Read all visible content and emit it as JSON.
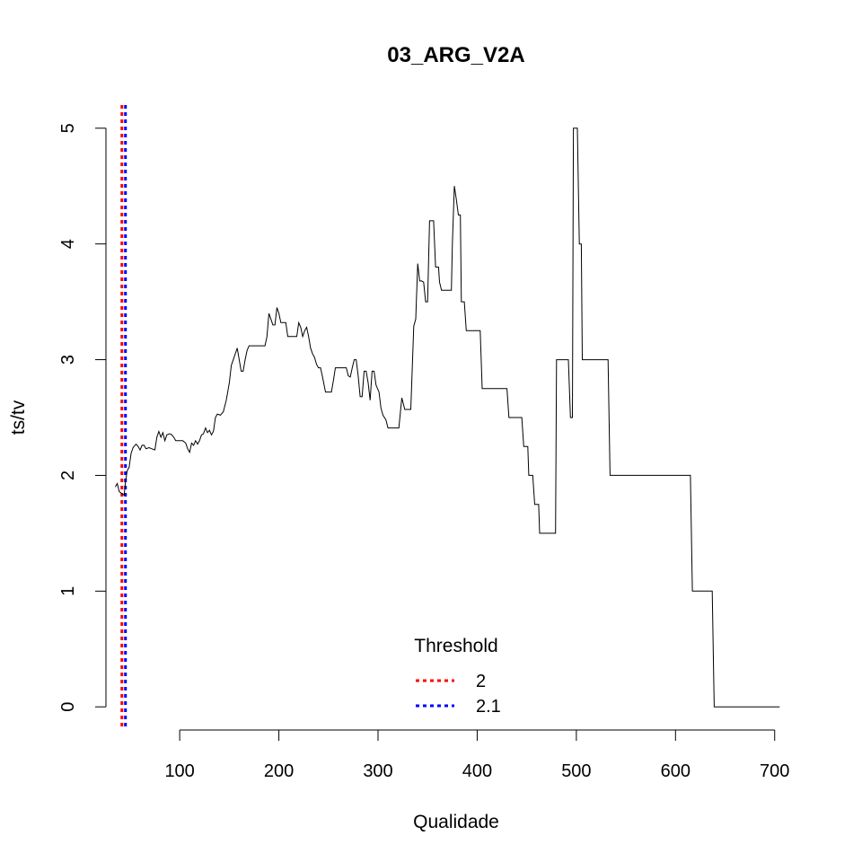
{
  "chart_data": {
    "type": "line",
    "title": "03_ARG_V2A",
    "xlabel": "Qualidade",
    "ylabel": "ts/tv",
    "xlim": [
      22,
      712
    ],
    "ylim": [
      -0.2,
      5.2
    ],
    "x_ticks": [
      100,
      200,
      300,
      400,
      500,
      600,
      700
    ],
    "x_tick_labels": [
      "100",
      "200",
      "300",
      "400",
      "500",
      "600",
      "700"
    ],
    "y_ticks": [
      0,
      1,
      2,
      3,
      4,
      5
    ],
    "y_tick_labels": [
      "0",
      "1",
      "2",
      "3",
      "4",
      "5"
    ],
    "grid": false,
    "series": [
      {
        "color": "#000000",
        "points": [
          [
            35,
            1.9
          ],
          [
            37,
            1.93
          ],
          [
            39,
            1.86
          ],
          [
            42,
            1.84
          ],
          [
            44,
            1.83
          ],
          [
            45,
            1.92
          ],
          [
            47,
            2.04
          ],
          [
            49,
            2.07
          ],
          [
            51,
            2.19
          ],
          [
            53,
            2.24
          ],
          [
            56,
            2.27
          ],
          [
            58,
            2.25
          ],
          [
            60,
            2.22
          ],
          [
            62,
            2.26
          ],
          [
            64,
            2.26
          ],
          [
            66,
            2.23
          ],
          [
            69,
            2.24
          ],
          [
            72,
            2.23
          ],
          [
            75,
            2.22
          ],
          [
            77,
            2.33
          ],
          [
            79,
            2.38
          ],
          [
            81,
            2.33
          ],
          [
            83,
            2.37
          ],
          [
            85,
            2.3
          ],
          [
            87,
            2.35
          ],
          [
            90,
            2.36
          ],
          [
            92,
            2.35
          ],
          [
            94,
            2.33
          ],
          [
            96,
            2.3
          ],
          [
            99,
            2.3
          ],
          [
            103,
            2.3
          ],
          [
            106,
            2.28
          ],
          [
            108,
            2.23
          ],
          [
            110,
            2.2
          ],
          [
            112,
            2.28
          ],
          [
            114,
            2.26
          ],
          [
            116,
            2.3
          ],
          [
            118,
            2.27
          ],
          [
            120,
            2.3
          ],
          [
            122,
            2.35
          ],
          [
            124,
            2.36
          ],
          [
            126,
            2.41
          ],
          [
            128,
            2.37
          ],
          [
            130,
            2.39
          ],
          [
            132,
            2.35
          ],
          [
            134,
            2.38
          ],
          [
            136,
            2.5
          ],
          [
            138,
            2.53
          ],
          [
            141,
            2.52
          ],
          [
            144,
            2.55
          ],
          [
            147,
            2.65
          ],
          [
            150,
            2.8
          ],
          [
            152,
            2.95
          ],
          [
            154,
            3.0
          ],
          [
            156,
            3.05
          ],
          [
            158,
            3.1
          ],
          [
            160,
            3.0
          ],
          [
            162,
            2.9
          ],
          [
            164,
            2.9
          ],
          [
            166,
            3.0
          ],
          [
            168,
            3.08
          ],
          [
            170,
            3.12
          ],
          [
            175,
            3.12
          ],
          [
            180,
            3.12
          ],
          [
            186,
            3.12
          ],
          [
            188,
            3.2
          ],
          [
            190,
            3.4
          ],
          [
            192,
            3.35
          ],
          [
            194,
            3.3
          ],
          [
            196,
            3.3
          ],
          [
            198,
            3.45
          ],
          [
            200,
            3.4
          ],
          [
            202,
            3.32
          ],
          [
            205,
            3.32
          ],
          [
            207,
            3.32
          ],
          [
            209,
            3.2
          ],
          [
            212,
            3.2
          ],
          [
            215,
            3.2
          ],
          [
            218,
            3.2
          ],
          [
            220,
            3.32
          ],
          [
            222,
            3.28
          ],
          [
            224,
            3.2
          ],
          [
            226,
            3.25
          ],
          [
            228,
            3.28
          ],
          [
            230,
            3.2
          ],
          [
            232,
            3.1
          ],
          [
            234,
            3.05
          ],
          [
            236,
            3.02
          ],
          [
            238,
            2.96
          ],
          [
            240,
            2.93
          ],
          [
            242,
            2.93
          ],
          [
            244,
            2.85
          ],
          [
            247,
            2.72
          ],
          [
            250,
            2.72
          ],
          [
            253,
            2.72
          ],
          [
            255,
            2.82
          ],
          [
            257,
            2.93
          ],
          [
            260,
            2.93
          ],
          [
            265,
            2.93
          ],
          [
            268,
            2.93
          ],
          [
            270,
            2.86
          ],
          [
            272,
            2.85
          ],
          [
            274,
            2.93
          ],
          [
            276,
            3.0
          ],
          [
            278,
            3.0
          ],
          [
            280,
            2.86
          ],
          [
            282,
            2.68
          ],
          [
            284,
            2.68
          ],
          [
            286,
            2.9
          ],
          [
            288,
            2.9
          ],
          [
            290,
            2.8
          ],
          [
            292,
            2.65
          ],
          [
            294,
            2.9
          ],
          [
            296,
            2.9
          ],
          [
            298,
            2.78
          ],
          [
            301,
            2.72
          ],
          [
            303,
            2.58
          ],
          [
            305,
            2.52
          ],
          [
            308,
            2.48
          ],
          [
            310,
            2.41
          ],
          [
            315,
            2.41
          ],
          [
            318,
            2.41
          ],
          [
            321,
            2.41
          ],
          [
            324,
            2.67
          ],
          [
            327,
            2.57
          ],
          [
            330,
            2.57
          ],
          [
            333,
            2.57
          ],
          [
            336,
            3.29
          ],
          [
            338,
            3.35
          ],
          [
            340,
            3.83
          ],
          [
            342,
            3.68
          ],
          [
            344,
            3.68
          ],
          [
            346,
            3.67
          ],
          [
            348,
            3.5
          ],
          [
            350,
            3.5
          ],
          [
            352,
            4.2
          ],
          [
            356,
            4.2
          ],
          [
            358,
            3.8
          ],
          [
            361,
            3.8
          ],
          [
            362,
            3.67
          ],
          [
            364,
            3.6
          ],
          [
            367,
            3.6
          ],
          [
            369,
            3.6
          ],
          [
            374,
            3.6
          ],
          [
            375,
            4.0
          ],
          [
            377,
            4.5
          ],
          [
            379,
            4.38
          ],
          [
            381,
            4.25
          ],
          [
            383,
            4.25
          ],
          [
            384,
            3.5
          ],
          [
            387,
            3.5
          ],
          [
            389,
            3.25
          ],
          [
            393,
            3.25
          ],
          [
            398,
            3.25
          ],
          [
            403,
            3.25
          ],
          [
            405,
            2.75
          ],
          [
            414,
            2.75
          ],
          [
            430,
            2.75
          ],
          [
            432,
            2.5
          ],
          [
            440,
            2.5
          ],
          [
            445,
            2.5
          ],
          [
            447,
            2.25
          ],
          [
            451,
            2.25
          ],
          [
            452,
            2.0
          ],
          [
            456,
            2.0
          ],
          [
            458,
            1.75
          ],
          [
            462,
            1.75
          ],
          [
            463,
            1.5
          ],
          [
            470,
            1.5
          ],
          [
            479,
            1.5
          ],
          [
            480,
            3.0
          ],
          [
            492,
            3.0
          ],
          [
            494,
            2.5
          ],
          [
            496,
            2.5
          ],
          [
            497,
            5.0
          ],
          [
            501,
            5.0
          ],
          [
            503,
            4.0
          ],
          [
            505,
            4.0
          ],
          [
            506,
            3.0
          ],
          [
            510,
            3.0
          ],
          [
            532,
            3.0
          ],
          [
            534,
            2.0
          ],
          [
            560,
            2.0
          ],
          [
            615,
            2.0
          ],
          [
            617,
            1.0
          ],
          [
            637,
            1.0
          ],
          [
            639,
            0.0
          ],
          [
            705,
            0.0
          ]
        ]
      }
    ],
    "vlines": [
      {
        "x": 41.7,
        "color": "#FF0000",
        "dashed": true
      },
      {
        "x": 45.3,
        "color": "#0000FF",
        "dashed": true
      }
    ],
    "legend": {
      "title": "Threshold",
      "position": "bottom-center",
      "entries": [
        {
          "label": "2",
          "color": "#FF0000"
        },
        {
          "label": "2.1",
          "color": "#0000FF"
        }
      ]
    }
  }
}
